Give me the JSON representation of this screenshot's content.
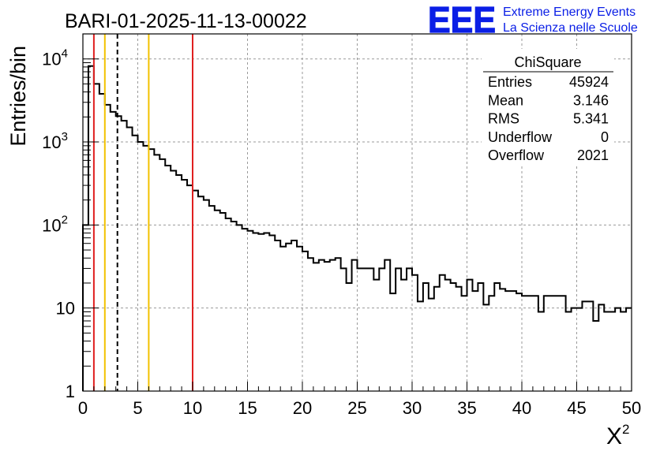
{
  "chart_data": {
    "type": "histogram",
    "title": "BARI-01-2025-11-13-00022",
    "xlabel": "X²",
    "xlabel_base": "X",
    "xlabel_sup": "2",
    "ylabel": "Entries/bin",
    "xlim": [
      0,
      50
    ],
    "ylim": [
      1,
      20000
    ],
    "yscale": "log",
    "grid": true,
    "x_ticks": [
      "0",
      "5",
      "10",
      "15",
      "20",
      "25",
      "30",
      "35",
      "40",
      "45",
      "50"
    ],
    "y_ticks": [
      {
        "value": 1,
        "label": "1"
      },
      {
        "value": 10,
        "label": "10"
      },
      {
        "value": 100,
        "label": "10",
        "sup": "2"
      },
      {
        "value": 1000,
        "label": "10",
        "sup": "3"
      },
      {
        "value": 10000,
        "label": "10",
        "sup": "4"
      }
    ],
    "bin_width": 0.5,
    "bin_start": 0,
    "values": [
      100,
      8200,
      5000,
      3800,
      2800,
      2300,
      2050,
      1800,
      1500,
      1200,
      1000,
      900,
      820,
      700,
      620,
      520,
      450,
      400,
      350,
      300,
      260,
      220,
      200,
      170,
      150,
      140,
      120,
      110,
      100,
      90,
      85,
      80,
      78,
      80,
      75,
      65,
      55,
      60,
      65,
      55,
      48,
      40,
      35,
      38,
      36,
      38,
      40,
      30,
      20,
      38,
      30,
      30,
      30,
      22,
      30,
      38,
      15,
      30,
      22,
      30,
      25,
      12,
      20,
      13,
      18,
      25,
      22,
      20,
      18,
      14,
      22,
      16,
      20,
      11,
      14,
      20,
      17,
      16,
      16,
      15,
      14,
      14,
      14,
      9,
      14,
      14,
      14,
      14,
      9,
      10,
      10,
      12,
      12,
      7,
      11,
      9,
      9,
      10,
      9,
      10
    ],
    "vertical_lines": [
      {
        "x": 1.0,
        "color": "#e02020",
        "style": "solid"
      },
      {
        "x": 2.0,
        "color": "#f2c200",
        "style": "solid"
      },
      {
        "x": 3.146,
        "color": "#000000",
        "style": "dashed"
      },
      {
        "x": 6.0,
        "color": "#f2c200",
        "style": "solid"
      },
      {
        "x": 10.0,
        "color": "#e02020",
        "style": "solid"
      }
    ],
    "stats_box": {
      "title": "ChiSquare",
      "rows": [
        {
          "label": "Entries",
          "value": "45924"
        },
        {
          "label": "Mean",
          "value": "3.146"
        },
        {
          "label": "RMS",
          "value": "5.341"
        },
        {
          "label": "Underflow",
          "value": "0"
        },
        {
          "label": "Overflow",
          "value": "2021"
        }
      ]
    }
  },
  "logo": {
    "mark": "EEE",
    "line1": "Extreme Energy Events",
    "line2": "La Scienza nelle Scuole",
    "color": "#0a1ee6"
  }
}
